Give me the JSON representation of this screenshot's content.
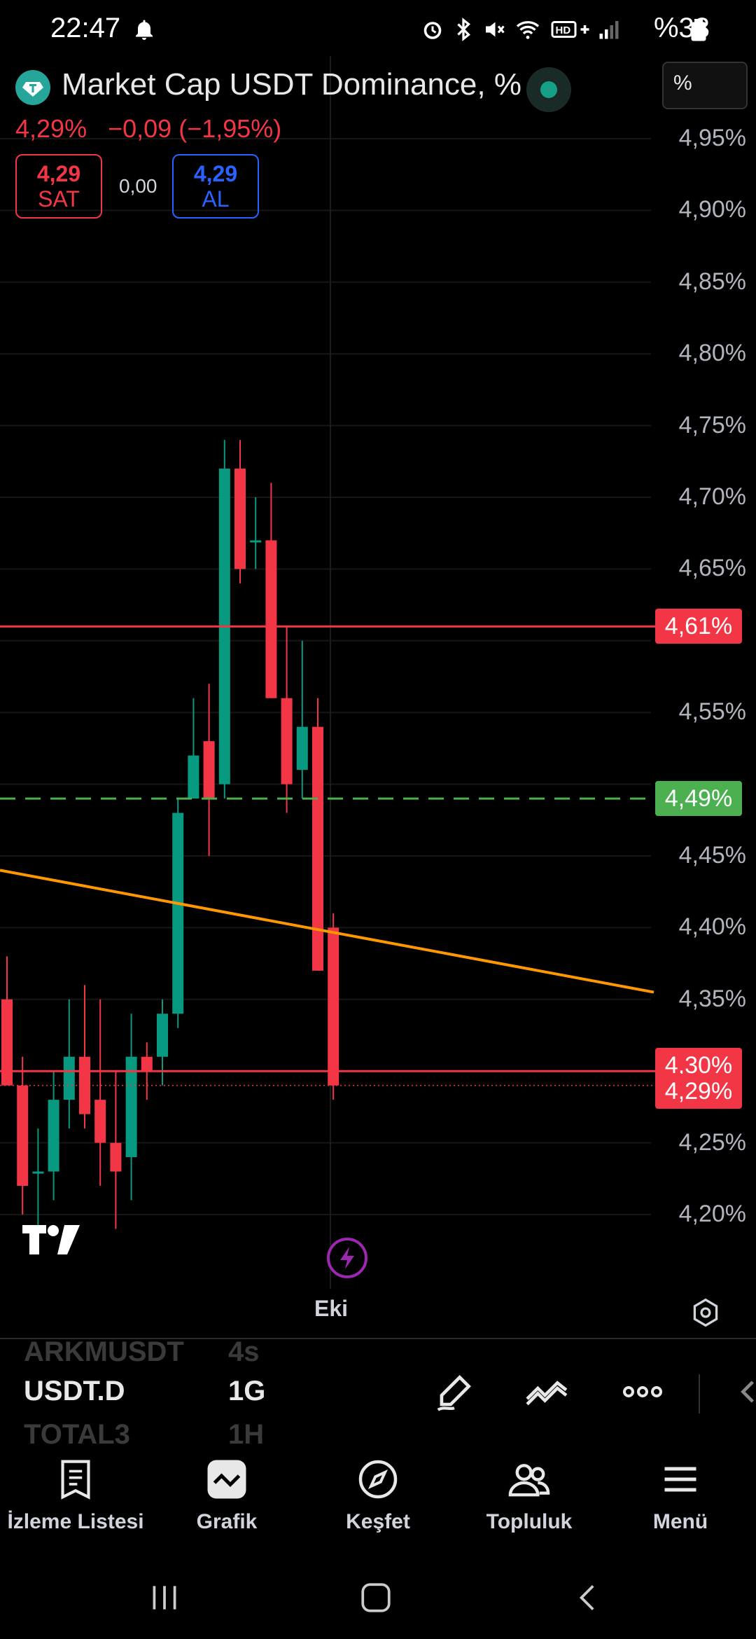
{
  "status_bar": {
    "time": "22:47",
    "battery": "%33",
    "icons": [
      "bell-icon",
      "alarm-icon",
      "bluetooth-icon",
      "mute-icon",
      "wifi-icon",
      "hd-plus-icon",
      "signal-icon",
      "battery-icon"
    ]
  },
  "header": {
    "symbol_name": "Market Cap USDT Dominance, %",
    "last_price": "4,29%",
    "change": "−0,09",
    "change_pct": "(−1,95%)",
    "sell_price": "4,29",
    "sell_label": "SAT",
    "spread": "0,00",
    "buy_price": "4,29",
    "buy_label": "AL",
    "unit_selector": "%"
  },
  "chart_data": {
    "type": "candlestick",
    "y_axis_ticks": [
      "4,95%",
      "4,90%",
      "4,85%",
      "4,80%",
      "4,75%",
      "4,70%",
      "4,65%",
      "4,55%",
      "4,45%",
      "4,40%",
      "4,35%",
      "4,25%",
      "4,20%"
    ],
    "ylim": [
      4.18,
      4.98
    ],
    "price_tags": [
      {
        "text": "4,61%",
        "value": 4.61,
        "color": "#f23645"
      },
      {
        "text": "4,49%",
        "value": 4.49,
        "color": "#4caf50"
      },
      {
        "text": "4,30%",
        "value": 4.3,
        "color": "#f23645"
      },
      {
        "text": "4,29%",
        "value": 4.29,
        "color": "#f23645"
      }
    ],
    "horizontal_lines": [
      {
        "value": 4.61,
        "style": "solid",
        "color": "#f23645"
      },
      {
        "value": 4.49,
        "style": "dashed",
        "color": "#4caf50"
      },
      {
        "value": 4.3,
        "style": "solid",
        "color": "#f23645"
      },
      {
        "value": 4.29,
        "style": "dotted",
        "color": "#f23645"
      }
    ],
    "trend_line": {
      "color": "#ff9800",
      "start_value": 4.44,
      "end_value": 4.355
    },
    "candles": [
      {
        "o": 4.35,
        "h": 4.38,
        "l": 4.29,
        "c": 4.29
      },
      {
        "o": 4.29,
        "h": 4.31,
        "l": 4.2,
        "c": 4.22
      },
      {
        "o": 4.23,
        "h": 4.26,
        "l": 4.19,
        "c": 4.23
      },
      {
        "o": 4.23,
        "h": 4.3,
        "l": 4.21,
        "c": 4.28
      },
      {
        "o": 4.28,
        "h": 4.35,
        "l": 4.26,
        "c": 4.31
      },
      {
        "o": 4.31,
        "h": 4.36,
        "l": 4.26,
        "c": 4.27
      },
      {
        "o": 4.28,
        "h": 4.35,
        "l": 4.22,
        "c": 4.25
      },
      {
        "o": 4.25,
        "h": 4.3,
        "l": 4.19,
        "c": 4.23
      },
      {
        "o": 4.24,
        "h": 4.34,
        "l": 4.21,
        "c": 4.31
      },
      {
        "o": 4.31,
        "h": 4.32,
        "l": 4.28,
        "c": 4.3
      },
      {
        "o": 4.31,
        "h": 4.35,
        "l": 4.29,
        "c": 4.34
      },
      {
        "o": 4.34,
        "h": 4.49,
        "l": 4.33,
        "c": 4.48
      },
      {
        "o": 4.49,
        "h": 4.56,
        "l": 4.49,
        "c": 4.52
      },
      {
        "o": 4.53,
        "h": 4.57,
        "l": 4.45,
        "c": 4.49
      },
      {
        "o": 4.5,
        "h": 4.74,
        "l": 4.49,
        "c": 4.72
      },
      {
        "o": 4.72,
        "h": 4.74,
        "l": 4.64,
        "c": 4.65
      },
      {
        "o": 4.67,
        "h": 4.7,
        "l": 4.65,
        "c": 4.67
      },
      {
        "o": 4.67,
        "h": 4.71,
        "l": 4.56,
        "c": 4.56
      },
      {
        "o": 4.56,
        "h": 4.61,
        "l": 4.48,
        "c": 4.5
      },
      {
        "o": 4.51,
        "h": 4.6,
        "l": 4.49,
        "c": 4.54
      },
      {
        "o": 4.54,
        "h": 4.56,
        "l": 4.37,
        "c": 4.37
      },
      {
        "o": 4.4,
        "h": 4.41,
        "l": 4.28,
        "c": 4.29
      }
    ]
  },
  "chart_extras": {
    "eki_label": "Eki"
  },
  "toolbar": {
    "symbols": {
      "prev": "ARKMUSDT",
      "current": "USDT.D",
      "next": "TOTAL3"
    },
    "timeframes": {
      "prev": "4s",
      "current": "1G",
      "next": "1H"
    }
  },
  "nav": {
    "items": [
      {
        "label": "İzleme Listesi",
        "icon": "watchlist-icon"
      },
      {
        "label": "Grafik",
        "icon": "chart-icon"
      },
      {
        "label": "Keşfet",
        "icon": "compass-icon"
      },
      {
        "label": "Topluluk",
        "icon": "community-icon"
      },
      {
        "label": "Menü",
        "icon": "menu-icon"
      }
    ]
  },
  "colors": {
    "up": "#089981",
    "down": "#f23645",
    "trend": "#ff9800",
    "accent_purple": "#9c27b0"
  }
}
